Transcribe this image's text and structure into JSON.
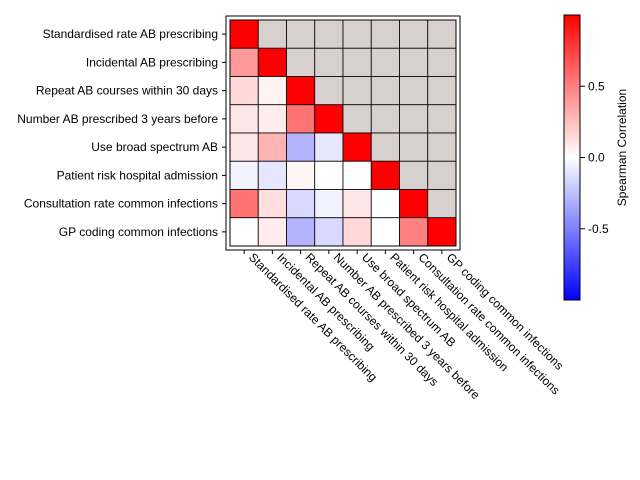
{
  "chart_data": {
    "type": "heatmap",
    "variables": [
      "Standardised rate AB prescribing",
      "Incidental AB prescribing",
      "Repeat AB courses within 30 days",
      "Number AB prescribed 3 years before",
      "Use broad spectrum AB",
      "Patient risk hospital admission",
      "Consultation rate common infections",
      "GP coding common infections"
    ],
    "matrix": [
      [
        1.0,
        null,
        null,
        null,
        null,
        null,
        null,
        null
      ],
      [
        0.4,
        1.0,
        null,
        null,
        null,
        null,
        null,
        null
      ],
      [
        0.15,
        0.05,
        1.0,
        null,
        null,
        null,
        null,
        null
      ],
      [
        0.1,
        0.07,
        0.55,
        1.0,
        null,
        null,
        null,
        null
      ],
      [
        0.1,
        0.3,
        -0.3,
        -0.1,
        1.0,
        null,
        null,
        null
      ],
      [
        -0.05,
        -0.1,
        0.04,
        0.0,
        0.0,
        1.0,
        null,
        null
      ],
      [
        0.55,
        0.13,
        -0.15,
        -0.05,
        0.1,
        0.0,
        1.0,
        null
      ],
      [
        0.0,
        0.07,
        -0.3,
        -0.15,
        0.15,
        0.0,
        0.5,
        1.0
      ]
    ],
    "masked_color": "#d8d0ce",
    "colorbar": {
      "label": "Spearman Correlation",
      "ticks": [
        0.5,
        0.0,
        -0.5
      ],
      "tick_labels": [
        "0.5",
        "0.0",
        "-0.5"
      ],
      "range": [
        -1,
        1
      ],
      "color_low": "#0000ff",
      "color_mid": "#ffffff",
      "color_high": "#ff0000"
    },
    "grid": true,
    "legend_placement": "right"
  }
}
